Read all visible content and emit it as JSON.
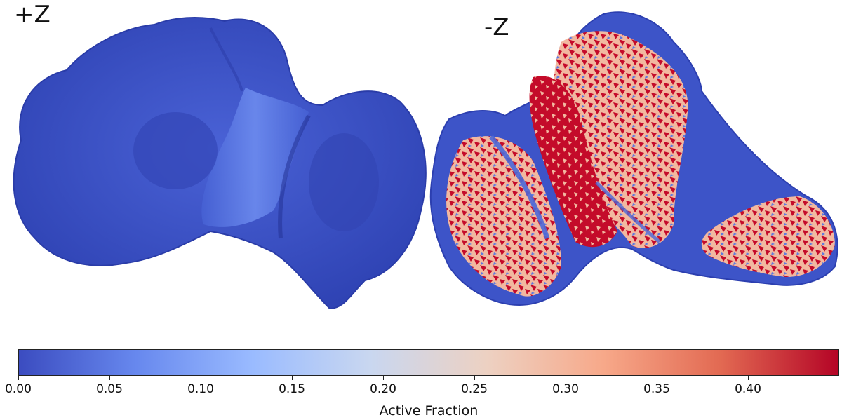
{
  "views": {
    "plus": {
      "label": "+Z"
    },
    "minus": {
      "label": "-Z"
    }
  },
  "colorbar": {
    "title": "Active Fraction",
    "min": 0.0,
    "max": 0.45,
    "ticks": [
      "0.00",
      "0.05",
      "0.10",
      "0.15",
      "0.20",
      "0.25",
      "0.30",
      "0.35",
      "0.40"
    ],
    "colormap": "coolwarm",
    "colors": [
      "#3b4cc0",
      "#6788ee",
      "#9abbff",
      "#c9d7f0",
      "#edd1c2",
      "#f7a889",
      "#e26952",
      "#b40426"
    ]
  },
  "surface_colors": {
    "low": "#3d54c8",
    "mid_blue": "#5c7ae0",
    "salmon": "#f2b8a0",
    "red": "#c40b2a"
  }
}
